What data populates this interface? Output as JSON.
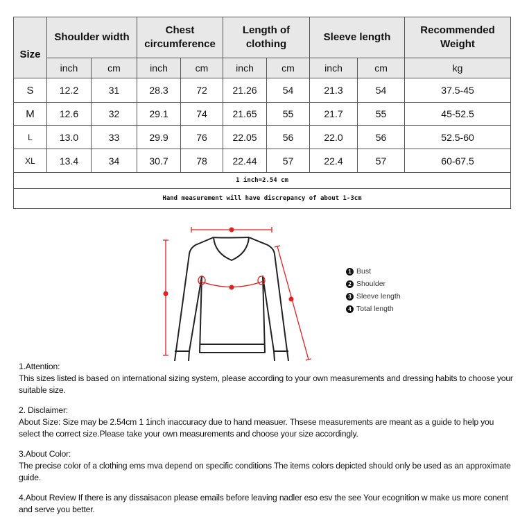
{
  "table": {
    "headers": {
      "size": "Size",
      "shoulder": "Shoulder width",
      "chest": "Chest circumference",
      "length": "Length of clothing",
      "sleeve": "Sleeve length",
      "weight": "Recommended Weight"
    },
    "units": [
      "inch",
      "cm",
      "inch",
      "cm",
      "inch",
      "cm",
      "inch",
      "cm",
      "kg"
    ],
    "rows": [
      {
        "size": "S",
        "values": [
          "12.2",
          "31",
          "28.3",
          "72",
          "21.26",
          "54",
          "21.3",
          "54",
          "37.5-45"
        ]
      },
      {
        "size": "M",
        "values": [
          "12.6",
          "32",
          "29.1",
          "74",
          "21.65",
          "55",
          "21.7",
          "55",
          "45-52.5"
        ]
      },
      {
        "size": "L",
        "values": [
          "13.0",
          "33",
          "29.9",
          "76",
          "22.05",
          "56",
          "22.0",
          "56",
          "52.5-60"
        ]
      },
      {
        "size": "XL",
        "values": [
          "13.4",
          "34",
          "30.7",
          "78",
          "22.44",
          "57",
          "22.4",
          "57",
          "60-67.5"
        ]
      }
    ],
    "conversion_note": "1 inch=2.54 cm",
    "measurement_note": "Hand measurement will have discrepancy of about 1-3cm"
  },
  "diagram": {
    "accent_color": "#e02020",
    "legend": [
      {
        "num": "1",
        "label": "Bust"
      },
      {
        "num": "2",
        "label": "Shoulder"
      },
      {
        "num": "3",
        "label": "Sleeve length"
      },
      {
        "num": "4",
        "label": "Total length"
      }
    ]
  },
  "notes": [
    {
      "title": "1.Attention:",
      "body": "This sizes listed is based on international sizing system, please according to your own measurements and dressing   habits to choose your suitable size."
    },
    {
      "title": "2. Disclaimer:",
      "body": "About Size: Size may be 2.54cm 1 1inch inaccuracy due to hand measuer. Thsese measurements are meant as a   guide to help you select the correct size.Please take your own measurements and choose your size accordingly."
    },
    {
      "title": "3.About Color:",
      "body": "The precise color of a clothing ems mva depend on specific conditions The items colors depicted should only be   used as an approximate guide."
    },
    {
      "title": "",
      "body": "4.About Review If there is any dissaisacon please emails before leaving nadler eso esv the see Your ecognition w   make us more conent and serve you better."
    }
  ]
}
